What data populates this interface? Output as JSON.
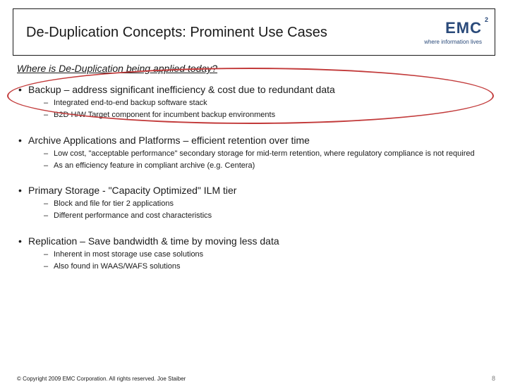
{
  "title": "De-Duplication Concepts: Prominent Use Cases",
  "logo": {
    "name": "EMC",
    "tagline": "where information lives"
  },
  "subtitle": "Where is De-Duplication being applied today?",
  "sections": [
    {
      "heading": "Backup – address significant inefficiency & cost due to redundant data",
      "items": [
        "Integrated end-to-end backup software stack",
        "B2D H/W Target component for incumbent backup environments"
      ]
    },
    {
      "heading": "Archive Applications and Platforms – efficient retention over time",
      "items": [
        "Low cost, \"acceptable performance\" secondary storage for mid-term retention, where regulatory compliance is not required",
        "As an efficiency feature in compliant archive (e.g. Centera)"
      ]
    },
    {
      "heading": "Primary Storage - \"Capacity Optimized\" ILM tier",
      "items": [
        "Block and file for tier 2 applications",
        "Different performance and cost characteristics"
      ]
    },
    {
      "heading": "Replication – Save bandwidth & time by moving less data",
      "items": [
        "Inherent in most storage use case solutions",
        "Also found in WAAS/WAFS solutions"
      ]
    }
  ],
  "footer": "© Copyright 2009 EMC Corporation. All rights reserved. Joe Staiber",
  "page_number": "8",
  "colors": {
    "text": "#1a1a1a",
    "logo": "#2a4a7a",
    "ellipse": "#c23a3a",
    "background": "#ffffff"
  }
}
